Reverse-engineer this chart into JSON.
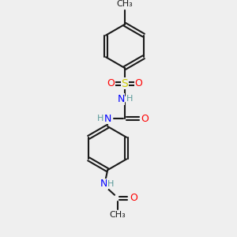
{
  "background_color": "#efefef",
  "bond_color": "#1a1a1a",
  "atom_colors": {
    "N": "#0000ff",
    "O": "#ff0000",
    "S": "#cccc00",
    "C": "#1a1a1a",
    "H": "#5a9a9a"
  },
  "font_size_atom": 9,
  "font_size_small": 8
}
